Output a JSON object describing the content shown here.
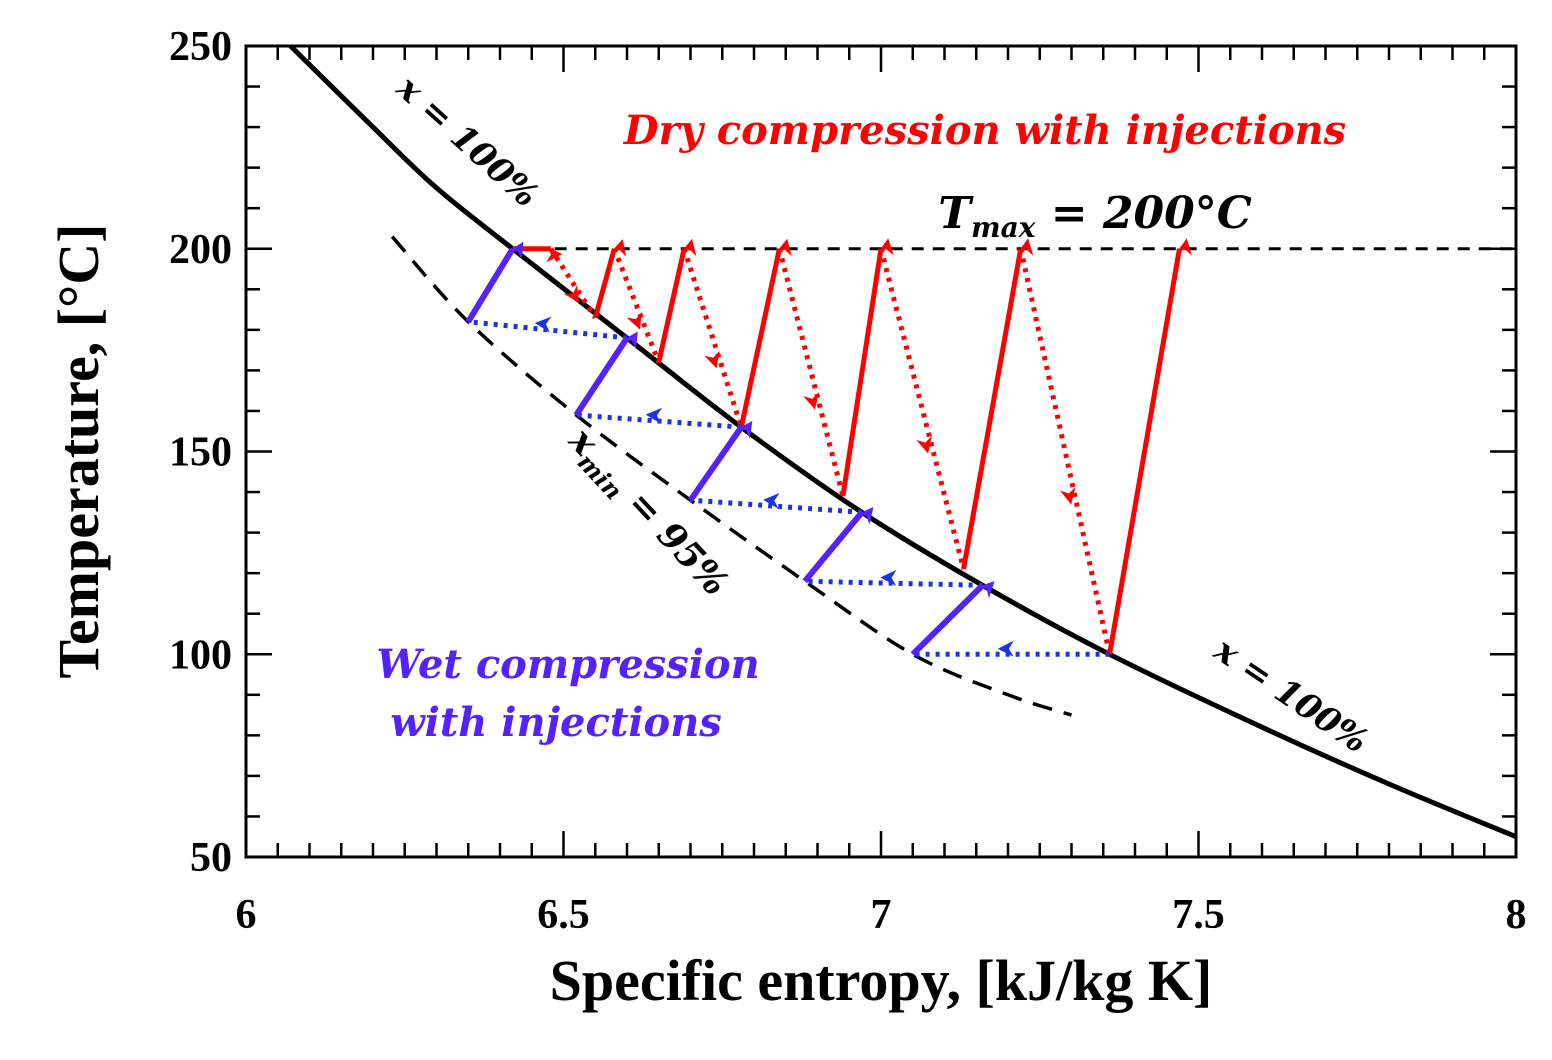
{
  "chart_data": {
    "type": "line",
    "xlabel": "Specific entropy, [kJ/kg K]",
    "ylabel": "Temperature, [°C]",
    "xlim": [
      6,
      8
    ],
    "ylim": [
      50,
      250
    ],
    "xticks": [
      6,
      6.5,
      7,
      7.5,
      8
    ],
    "xtick_labels": [
      "6",
      "6.5",
      "7",
      "7.5",
      "8"
    ],
    "yticks": [
      50,
      100,
      150,
      200,
      250
    ],
    "ytick_labels": [
      "50",
      "100",
      "150",
      "200",
      "250"
    ],
    "grid": false,
    "colors": {
      "dry": "#ff0000",
      "wet_solid": "#5522ff",
      "wet_dotted": "#1a35e0",
      "curve": "#000000"
    },
    "saturation_curve": {
      "name": "x = 100%",
      "x": [
        6.07,
        6.2,
        6.3,
        6.42,
        6.6,
        6.78,
        6.97,
        7.16,
        7.36,
        7.6,
        7.8,
        8.0
      ],
      "y": [
        250,
        230,
        215,
        200,
        178,
        156,
        135,
        117,
        100,
        82,
        68,
        55
      ]
    },
    "quality_curve": {
      "name": "x_min = 95%",
      "x": [
        6.23,
        6.35,
        6.52,
        6.7,
        6.88,
        7.05,
        7.2,
        7.3
      ],
      "y": [
        203,
        182,
        159,
        138,
        118,
        100,
        90,
        85
      ]
    },
    "tmax_line": {
      "y": 200,
      "x_start": 6.42,
      "x_end": 8.0
    },
    "dry_compression": [
      {
        "start": [
          6.42,
          200
        ],
        "peak": [
          6.48,
          200
        ]
      },
      {
        "start": [
          6.55,
          183
        ],
        "peak": [
          6.58,
          200
        ]
      },
      {
        "start": [
          6.65,
          172
        ],
        "peak": [
          6.69,
          200
        ]
      },
      {
        "start": [
          6.78,
          156
        ],
        "peak": [
          6.84,
          200
        ]
      },
      {
        "start": [
          6.94,
          139
        ],
        "peak": [
          7.0,
          200
        ]
      },
      {
        "start": [
          7.13,
          121
        ],
        "peak": [
          7.22,
          200
        ]
      },
      {
        "start": [
          7.36,
          100
        ],
        "peak": [
          7.47,
          200
        ]
      }
    ],
    "wet_compression": [
      {
        "sat": [
          6.6,
          178
        ],
        "wet": [
          6.35,
          182
        ],
        "peak": [
          6.42,
          200
        ]
      },
      {
        "sat": [
          6.78,
          156
        ],
        "wet": [
          6.52,
          159
        ],
        "peak": [
          6.6,
          178
        ]
      },
      {
        "sat": [
          6.97,
          135
        ],
        "wet": [
          6.7,
          138
        ],
        "peak": [
          6.78,
          156
        ]
      },
      {
        "sat": [
          7.16,
          117
        ],
        "wet": [
          6.88,
          118
        ],
        "peak": [
          6.97,
          135
        ]
      },
      {
        "sat": [
          7.36,
          100
        ],
        "wet": [
          7.05,
          100
        ],
        "peak": [
          7.16,
          117
        ]
      }
    ],
    "annotations": {
      "dry_title": "Dry compression with injections",
      "tmax_var": "T",
      "tmax_sub": "max",
      "tmax_rest": " = 200°C",
      "sat_upper": "x = 100%",
      "sat_lower": "x = 100%",
      "xmin_var": "x",
      "xmin_sub": "min",
      "xmin_rest": " = 95%",
      "wet_title_line1": "Wet compression",
      "wet_title_line2": "with injections"
    }
  }
}
